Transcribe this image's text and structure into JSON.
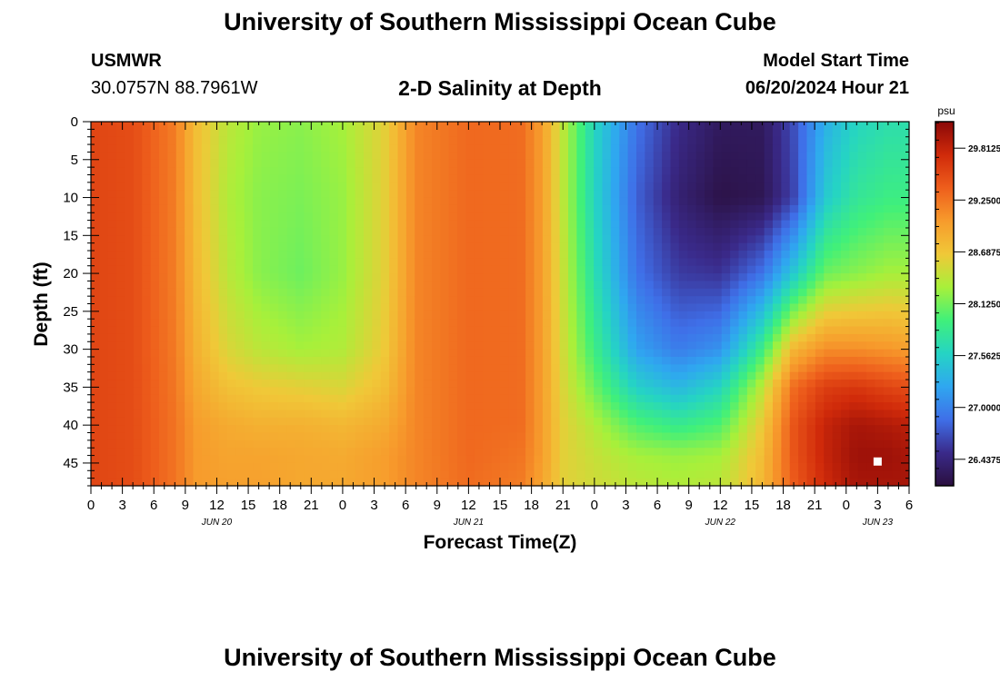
{
  "header": {
    "title": "University of Southern Mississippi Ocean Cube",
    "station": "USMWR",
    "coords": "30.0757N  88.7961W",
    "subtitle": "2-D Salinity at Depth",
    "model_start_label": "Model Start Time",
    "model_start_value": "06/20/2024 Hour 21"
  },
  "footer": {
    "title": "University of Southern Mississippi Ocean Cube"
  },
  "colors": {
    "colormap": [
      "#2a0f3e",
      "#3a2a8a",
      "#3f6fe8",
      "#2fa7f0",
      "#25d4c4",
      "#40f07a",
      "#a8f03a",
      "#f0c838",
      "#f79b2c",
      "#ee5e1c",
      "#d02a0a",
      "#8a0808"
    ]
  },
  "chart_data": {
    "type": "heatmap",
    "title": "2-D Salinity at Depth",
    "xlabel": "Forecast Time(Z)",
    "ylabel": "Depth (ft)",
    "x_tick_labels": [
      "0",
      "3",
      "6",
      "9",
      "12",
      "15",
      "18",
      "21",
      "0",
      "3",
      "6",
      "9",
      "12",
      "15",
      "18",
      "21",
      "0",
      "3",
      "6",
      "9",
      "12",
      "15",
      "18",
      "21",
      "0",
      "3",
      "6"
    ],
    "x_range_hours": [
      0,
      78
    ],
    "date_labels": [
      {
        "text": "JUN 20",
        "hour": 12
      },
      {
        "text": "JUN 21",
        "hour": 36
      },
      {
        "text": "JUN 22",
        "hour": 60
      },
      {
        "text": "JUN 23",
        "hour": 75
      }
    ],
    "y_tick_labels": [
      "0",
      "5",
      "10",
      "15",
      "20",
      "25",
      "30",
      "35",
      "40",
      "45"
    ],
    "y_ticks": [
      0,
      5,
      10,
      15,
      20,
      25,
      30,
      35,
      40,
      45
    ],
    "ylim": [
      0,
      48
    ],
    "y_inverted": true,
    "colorbar": {
      "unit": "psu",
      "range": [
        26.15,
        30.1
      ],
      "tick_values": [
        29.8125,
        29.25,
        28.6875,
        28.125,
        27.5625,
        27.0,
        26.4375
      ],
      "tick_labels": [
        "29.8125",
        "29.2500",
        "28.6875",
        "28.1250",
        "27.5625",
        "27.0000",
        "26.4375"
      ]
    },
    "salinity_profiles": {
      "depths_ft": [
        0,
        10,
        20,
        30,
        35,
        40,
        44,
        48
      ],
      "series": [
        {
          "hour": 0,
          "values": [
            29.55,
            29.55,
            29.55,
            29.55,
            29.55,
            29.55,
            29.55,
            29.55
          ]
        },
        {
          "hour": 4,
          "values": [
            29.5,
            29.5,
            29.5,
            29.5,
            29.5,
            29.5,
            29.5,
            29.5
          ]
        },
        {
          "hour": 8,
          "values": [
            29.2,
            29.2,
            29.2,
            29.22,
            29.24,
            29.26,
            29.26,
            29.26
          ]
        },
        {
          "hour": 10,
          "values": [
            28.75,
            28.75,
            28.78,
            28.85,
            28.92,
            29.0,
            29.02,
            29.02
          ]
        },
        {
          "hour": 13,
          "values": [
            28.4,
            28.35,
            28.4,
            28.55,
            28.72,
            28.9,
            28.95,
            28.98
          ]
        },
        {
          "hour": 16,
          "values": [
            28.25,
            28.2,
            28.2,
            28.4,
            28.65,
            28.85,
            28.95,
            28.98
          ]
        },
        {
          "hour": 20,
          "values": [
            28.2,
            28.15,
            28.1,
            28.3,
            28.6,
            28.85,
            28.92,
            28.92
          ]
        },
        {
          "hour": 24,
          "values": [
            28.3,
            28.25,
            28.25,
            28.35,
            28.55,
            28.8,
            28.9,
            28.92
          ]
        },
        {
          "hour": 28,
          "values": [
            28.6,
            28.6,
            28.6,
            28.65,
            28.75,
            28.9,
            29.0,
            29.0
          ]
        },
        {
          "hour": 31,
          "values": [
            29.15,
            29.15,
            29.15,
            29.15,
            29.15,
            29.15,
            29.15,
            29.15
          ]
        },
        {
          "hour": 36,
          "values": [
            29.32,
            29.32,
            29.32,
            29.32,
            29.32,
            29.32,
            29.32,
            29.3
          ]
        },
        {
          "hour": 41,
          "values": [
            29.3,
            29.3,
            29.3,
            29.3,
            29.3,
            29.3,
            29.25,
            29.2
          ]
        },
        {
          "hour": 43,
          "values": [
            29.0,
            29.0,
            29.0,
            29.0,
            29.0,
            29.0,
            29.0,
            28.95
          ]
        },
        {
          "hour": 45,
          "values": [
            28.4,
            28.4,
            28.45,
            28.5,
            28.55,
            28.6,
            28.6,
            28.6
          ]
        },
        {
          "hour": 48,
          "values": [
            27.6,
            27.6,
            27.7,
            27.9,
            28.1,
            28.35,
            28.45,
            28.5
          ]
        },
        {
          "hour": 52,
          "values": [
            26.9,
            26.8,
            26.9,
            27.2,
            27.55,
            28.0,
            28.3,
            28.4
          ]
        },
        {
          "hour": 56,
          "values": [
            26.5,
            26.4,
            26.6,
            26.95,
            27.35,
            27.85,
            28.25,
            28.35
          ]
        },
        {
          "hour": 60,
          "values": [
            26.3,
            26.2,
            26.55,
            27.1,
            27.6,
            28.0,
            28.3,
            28.4
          ]
        },
        {
          "hour": 64,
          "values": [
            26.3,
            26.25,
            26.9,
            27.9,
            28.4,
            28.65,
            28.75,
            28.8
          ]
        },
        {
          "hour": 67,
          "values": [
            26.7,
            26.65,
            27.5,
            28.8,
            29.3,
            29.45,
            29.45,
            29.4
          ]
        },
        {
          "hour": 70,
          "values": [
            27.3,
            27.5,
            28.1,
            29.1,
            29.6,
            29.8,
            29.8,
            29.75
          ]
        },
        {
          "hour": 73,
          "values": [
            27.6,
            27.8,
            28.2,
            29.1,
            29.65,
            29.95,
            30.0,
            29.95
          ]
        },
        {
          "hour": 76,
          "values": [
            27.7,
            27.9,
            28.3,
            29.05,
            29.55,
            29.9,
            30.0,
            29.95
          ]
        },
        {
          "hour": 78,
          "values": [
            27.7,
            27.9,
            28.3,
            29.0,
            29.5,
            29.85,
            29.95,
            29.95
          ]
        }
      ]
    },
    "marker": {
      "hour": 75,
      "depth_ft": 44.8,
      "color": "#ffffff"
    }
  }
}
